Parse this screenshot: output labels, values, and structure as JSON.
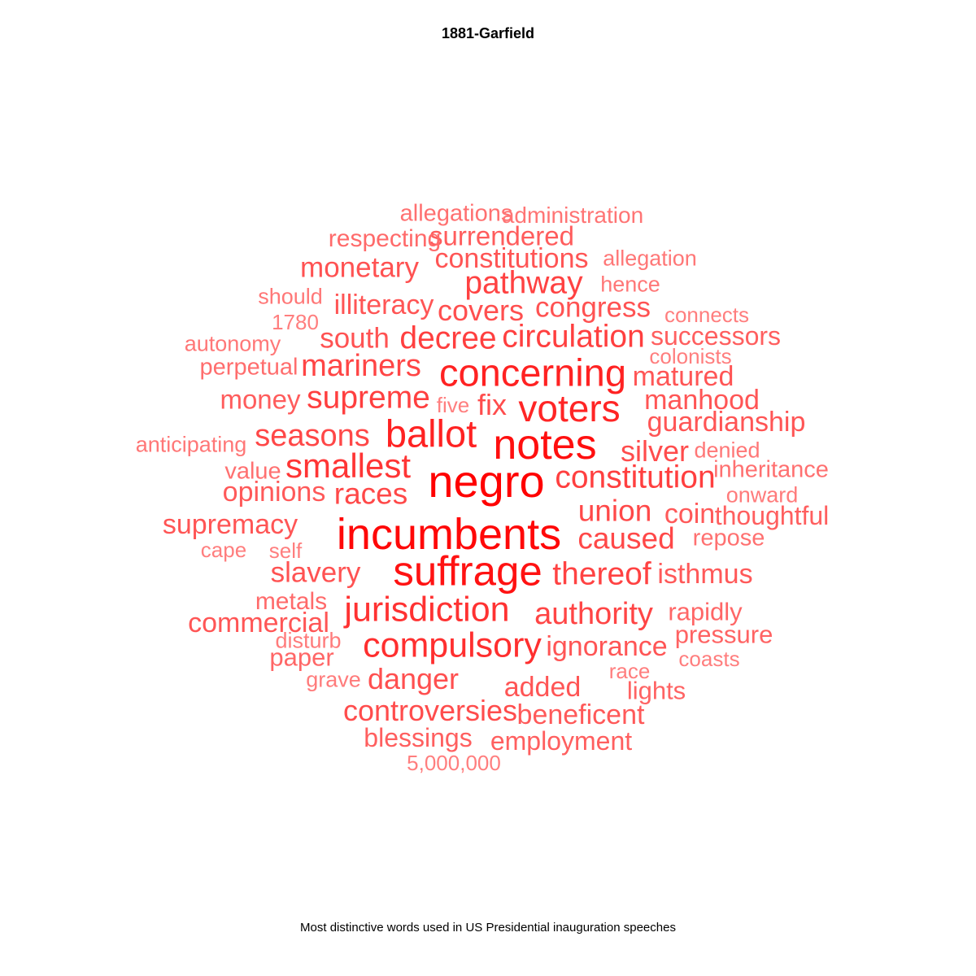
{
  "chart_data": {
    "type": "wordcloud",
    "title": "1881-Garfield",
    "caption": "Most distinctive words used in US Presidential inauguration speeches",
    "color_range": [
      "#ffaaaa",
      "#ff0000"
    ],
    "words": [
      {
        "text": "negro",
        "weight": 1.0
      },
      {
        "text": "incumbents",
        "weight": 0.95
      },
      {
        "text": "notes",
        "weight": 0.9
      },
      {
        "text": "suffrage",
        "weight": 0.88
      },
      {
        "text": "ballot",
        "weight": 0.78
      },
      {
        "text": "concerning",
        "weight": 0.78
      },
      {
        "text": "voters",
        "weight": 0.76
      },
      {
        "text": "compulsory",
        "weight": 0.7
      },
      {
        "text": "jurisdiction",
        "weight": 0.68
      },
      {
        "text": "smallest",
        "weight": 0.66
      },
      {
        "text": "supreme",
        "weight": 0.6
      },
      {
        "text": "circulation",
        "weight": 0.6
      },
      {
        "text": "decree",
        "weight": 0.6
      },
      {
        "text": "constitution",
        "weight": 0.6
      },
      {
        "text": "pathway",
        "weight": 0.58
      },
      {
        "text": "thereof",
        "weight": 0.58
      },
      {
        "text": "authority",
        "weight": 0.56
      },
      {
        "text": "mariners",
        "weight": 0.56
      },
      {
        "text": "seasons",
        "weight": 0.55
      },
      {
        "text": "races",
        "weight": 0.54
      },
      {
        "text": "union",
        "weight": 0.54
      },
      {
        "text": "caused",
        "weight": 0.54
      },
      {
        "text": "fix",
        "weight": 0.52
      },
      {
        "text": "silver",
        "weight": 0.52
      },
      {
        "text": "controversies",
        "weight": 0.52
      },
      {
        "text": "danger",
        "weight": 0.5
      },
      {
        "text": "covers",
        "weight": 0.5
      },
      {
        "text": "congress",
        "weight": 0.48
      },
      {
        "text": "south",
        "weight": 0.48
      },
      {
        "text": "slavery",
        "weight": 0.48
      },
      {
        "text": "monetary",
        "weight": 0.48
      },
      {
        "text": "constitutions",
        "weight": 0.46
      },
      {
        "text": "illiteracy",
        "weight": 0.46
      },
      {
        "text": "guardianship",
        "weight": 0.46
      },
      {
        "text": "manhood",
        "weight": 0.46
      },
      {
        "text": "matured",
        "weight": 0.46
      },
      {
        "text": "supremacy",
        "weight": 0.46
      },
      {
        "text": "commercial",
        "weight": 0.46
      },
      {
        "text": "ignorance",
        "weight": 0.46
      },
      {
        "text": "added",
        "weight": 0.46
      },
      {
        "text": "beneficent",
        "weight": 0.44
      },
      {
        "text": "isthmus",
        "weight": 0.44
      },
      {
        "text": "opinions",
        "weight": 0.44
      },
      {
        "text": "coin",
        "weight": 0.44
      },
      {
        "text": "surrendered",
        "weight": 0.42
      },
      {
        "text": "money",
        "weight": 0.42
      },
      {
        "text": "blessings",
        "weight": 0.4
      },
      {
        "text": "employment",
        "weight": 0.4
      },
      {
        "text": "successors",
        "weight": 0.4
      },
      {
        "text": "thoughtful",
        "weight": 0.4
      },
      {
        "text": "lights",
        "weight": 0.38
      },
      {
        "text": "pressure",
        "weight": 0.38
      },
      {
        "text": "rapidly",
        "weight": 0.36
      },
      {
        "text": "paper",
        "weight": 0.36
      },
      {
        "text": "metals",
        "weight": 0.34
      },
      {
        "text": "respecting",
        "weight": 0.34
      },
      {
        "text": "perpetual",
        "weight": 0.32
      },
      {
        "text": "repose",
        "weight": 0.3
      },
      {
        "text": "inheritance",
        "weight": 0.3
      },
      {
        "text": "value",
        "weight": 0.3
      },
      {
        "text": "allegations",
        "weight": 0.3
      },
      {
        "text": "administration",
        "weight": 0.28
      },
      {
        "text": "allegation",
        "weight": 0.26
      },
      {
        "text": "hence",
        "weight": 0.26
      },
      {
        "text": "should",
        "weight": 0.26
      },
      {
        "text": "autonomy",
        "weight": 0.26
      },
      {
        "text": "anticipating",
        "weight": 0.26
      },
      {
        "text": "denied",
        "weight": 0.26
      },
      {
        "text": "onward",
        "weight": 0.24
      },
      {
        "text": "disturb",
        "weight": 0.24
      },
      {
        "text": "grave",
        "weight": 0.24
      },
      {
        "text": "1780",
        "weight": 0.22
      },
      {
        "text": "connects",
        "weight": 0.22
      },
      {
        "text": "colonists",
        "weight": 0.22
      },
      {
        "text": "five",
        "weight": 0.22
      },
      {
        "text": "cape",
        "weight": 0.22
      },
      {
        "text": "self",
        "weight": 0.22
      },
      {
        "text": "coasts",
        "weight": 0.22
      },
      {
        "text": "race",
        "weight": 0.22
      },
      {
        "text": "5,000,000",
        "weight": 0.22
      }
    ]
  }
}
